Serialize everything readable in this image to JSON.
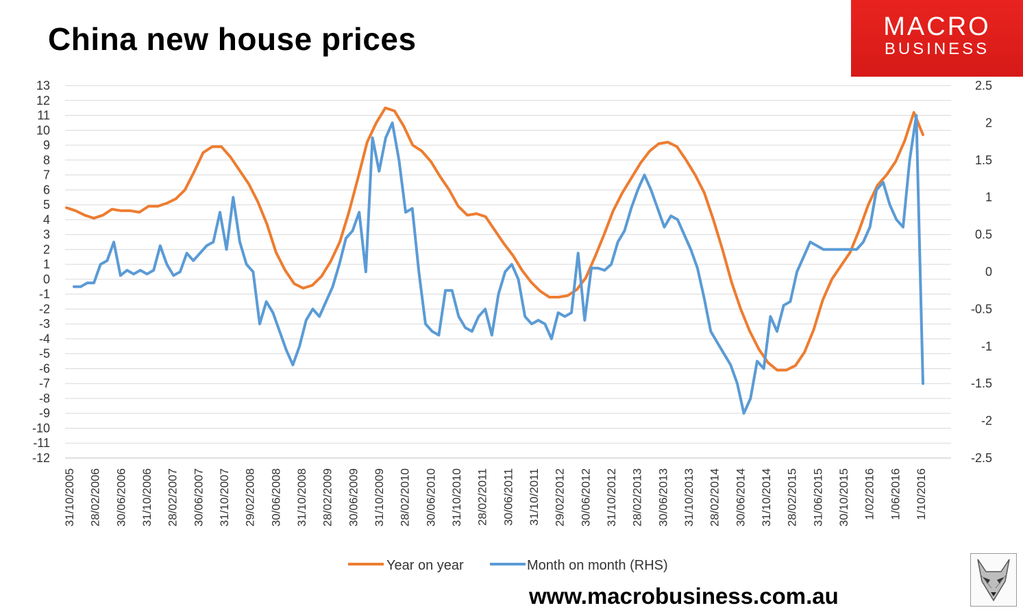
{
  "header": {
    "title": "China new house prices",
    "brand_line1": "MACRO",
    "brand_line2": "BUSINESS",
    "footer_url": "www.macrobusiness.com.au"
  },
  "icons": {
    "brand_logo": "macrobusiness-logo",
    "corner_image": "wolf-logo-icon"
  },
  "colors": {
    "year_on_year": "#ED7D31",
    "month_on_month": "#5B9BD5",
    "brand_red": "#E3201C",
    "grid": "#D9D9D9"
  },
  "chart_data": {
    "type": "line",
    "title": "China new house prices",
    "grid": true,
    "legend_position": "bottom",
    "y_left": {
      "min": -12,
      "max": 13,
      "step": 1,
      "ticks": [
        "13",
        "12",
        "11",
        "10",
        "9",
        "8",
        "7",
        "6",
        "5",
        "4",
        "3",
        "2",
        "1",
        "0",
        "-1",
        "-2",
        "-3",
        "-4",
        "-5",
        "-6",
        "-7",
        "-8",
        "-9",
        "-10",
        "-11",
        "-12"
      ]
    },
    "y_right": {
      "min": -2.5,
      "max": 2.5,
      "step": 0.5,
      "ticks": [
        "2.5",
        "2",
        "1.5",
        "1",
        "0.5",
        "0",
        "-0.5",
        "-1",
        "-1.5",
        "-2",
        "-2.5"
      ]
    },
    "x_tick_labels": [
      "31/10/2005",
      "28/02/2006",
      "30/06/2006",
      "31/10/2006",
      "28/02/2007",
      "30/06/2007",
      "31/10/2007",
      "29/02/2008",
      "30/06/2008",
      "31/10/2008",
      "28/02/2009",
      "30/06/2009",
      "31/10/2009",
      "28/02/2010",
      "30/06/2010",
      "31/10/2010",
      "28/02/2011",
      "30/06/2011",
      "31/10/2011",
      "29/02/2012",
      "30/06/2012",
      "31/10/2012",
      "28/02/2013",
      "30/06/2013",
      "31/10/2013",
      "28/02/2014",
      "30/06/2014",
      "31/10/2014",
      "28/02/2015",
      "31/06/2015",
      "30/10/2015",
      "1/02/2016",
      "1/06/2016",
      "1/10/2016"
    ],
    "series": [
      {
        "name": "Year on year",
        "axis": "left",
        "values": [
          4.8,
          4.6,
          4.3,
          4.1,
          4.3,
          4.7,
          4.6,
          4.6,
          4.5,
          4.9,
          4.9,
          5.1,
          5.4,
          6.0,
          7.2,
          8.5,
          8.9,
          8.9,
          8.2,
          7.3,
          6.4,
          5.2,
          3.7,
          1.8,
          0.6,
          -0.3,
          -0.6,
          -0.4,
          0.2,
          1.2,
          2.5,
          4.5,
          6.8,
          9.2,
          10.5,
          11.5,
          11.3,
          10.3,
          9.0,
          8.6,
          7.9,
          6.9,
          6.0,
          4.9,
          4.3,
          4.4,
          4.2,
          3.3,
          2.4,
          1.6,
          0.6,
          -0.2,
          -0.8,
          -1.2,
          -1.2,
          -1.1,
          -0.7,
          0.1,
          1.5,
          3.0,
          4.6,
          5.8,
          6.8,
          7.8,
          8.6,
          9.1,
          9.2,
          8.9,
          8.0,
          7.0,
          5.8,
          4.0,
          2.0,
          -0.2,
          -2.0,
          -3.5,
          -4.7,
          -5.6,
          -6.1,
          -6.1,
          -5.8,
          -4.9,
          -3.4,
          -1.4,
          0.0,
          0.9,
          1.8,
          3.3,
          5.0,
          6.3,
          7.0,
          7.9,
          9.3,
          11.2,
          9.7
        ]
      },
      {
        "name": "Month on month (RHS)",
        "axis": "right",
        "values": [
          -0.2,
          -0.2,
          -0.15,
          -0.15,
          0.1,
          0.15,
          0.4,
          -0.05,
          0.02,
          -0.03,
          0.02,
          -0.03,
          0.02,
          0.35,
          0.1,
          -0.05,
          0.0,
          0.25,
          0.15,
          0.25,
          0.35,
          0.4,
          0.8,
          0.3,
          1.0,
          0.4,
          0.1,
          0.0,
          -0.7,
          -0.4,
          -0.55,
          -0.8,
          -1.05,
          -1.25,
          -1.0,
          -0.65,
          -0.5,
          -0.6,
          -0.4,
          -0.2,
          0.1,
          0.45,
          0.55,
          0.8,
          0.0,
          1.8,
          1.35,
          1.8,
          2.0,
          1.5,
          0.8,
          0.85,
          0.0,
          -0.7,
          -0.8,
          -0.85,
          -0.25,
          -0.25,
          -0.6,
          -0.75,
          -0.8,
          -0.6,
          -0.5,
          -0.85,
          -0.3,
          0.0,
          0.1,
          -0.1,
          -0.6,
          -0.7,
          -0.65,
          -0.7,
          -0.9,
          -0.55,
          -0.6,
          -0.55,
          0.25,
          -0.65,
          0.05,
          0.05,
          0.02,
          0.1,
          0.4,
          0.55,
          0.85,
          1.1,
          1.3,
          1.1,
          0.85,
          0.6,
          0.75,
          0.7,
          0.5,
          0.3,
          0.05,
          -0.35,
          -0.8,
          -0.95,
          -1.1,
          -1.25,
          -1.5,
          -1.9,
          -1.7,
          -1.2,
          -1.3,
          -0.6,
          -0.8,
          -0.45,
          -0.4,
          0.0,
          0.2,
          0.4,
          0.35,
          0.3,
          0.3,
          0.3,
          0.3,
          0.3,
          0.3,
          0.4,
          0.6,
          1.1,
          1.2,
          0.9,
          0.7,
          0.6,
          1.5,
          2.1,
          -1.5
        ]
      }
    ]
  }
}
